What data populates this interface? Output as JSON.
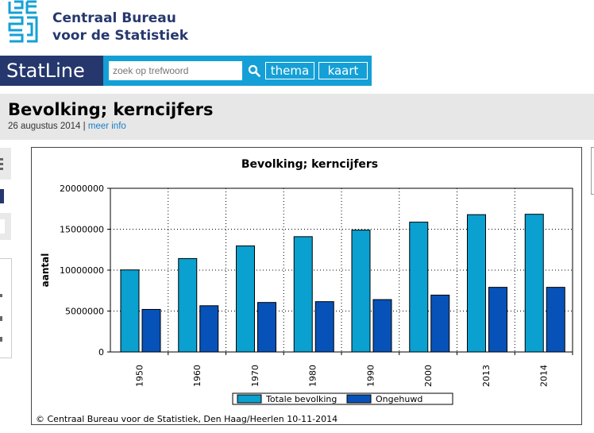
{
  "header": {
    "org_line1": "Centraal Bureau",
    "org_line2": "voor de Statistiek",
    "app_name": "StatLine",
    "search_placeholder": "zoek op trefwoord",
    "nav_buttons": [
      "thema",
      "kaart"
    ]
  },
  "table": {
    "title": "Bevolking; kerncijfers",
    "date": "26 augustus 2014",
    "separator": "|",
    "more_info": "meer info"
  },
  "colors": {
    "brand_dark": "#25376d",
    "brand_light": "#14a0d6",
    "series_total": "#0aa0cf",
    "series_unmarried": "#0752b8"
  },
  "chart_data": {
    "type": "bar",
    "title": "Bevolking; kerncijfers",
    "xlabel": "",
    "ylabel": "aantal",
    "ylim": [
      0,
      20000000
    ],
    "yticks": [
      "0",
      "5000000",
      "10000000",
      "15000000",
      "20000000"
    ],
    "categories": [
      "1950",
      "1960",
      "1970",
      "1980",
      "1990",
      "2000",
      "2013",
      "2014"
    ],
    "series": [
      {
        "name": "Totale bevolking",
        "values": [
          10026773,
          11417254,
          12957621,
          14091014,
          14892574,
          15863950,
          16779575,
          16829289
        ]
      },
      {
        "name": "Ongehuwd",
        "values": [
          5200000,
          5650000,
          6050000,
          6150000,
          6400000,
          6950000,
          7900000,
          7900000
        ]
      }
    ],
    "grid": true,
    "legend": "bottom",
    "footer": "© Centraal Bureau voor de Statistiek, Den Haag/Heerlen 10-11-2014"
  }
}
